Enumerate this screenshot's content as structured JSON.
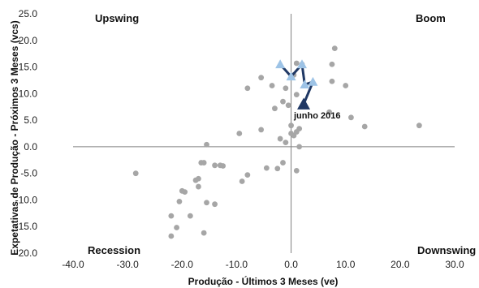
{
  "chart_data": {
    "type": "scatter",
    "xlabel": "Produção - Últimos 3 Meses (ve)",
    "ylabel": "Expetativas de Produção - Próximos 3 Meses (vcs)",
    "xlim": [
      -40,
      30
    ],
    "ylim": [
      -20,
      25
    ],
    "xticks": [
      -40,
      -30,
      -20,
      -10,
      0,
      10,
      20,
      30
    ],
    "yticks": [
      -20,
      -15,
      -10,
      -5,
      0,
      5,
      10,
      15,
      20,
      25
    ],
    "xtick_labels": [
      "-40.0",
      "-30.0",
      "-20.0",
      "-10.0",
      "0.0",
      "10.0",
      "20.0",
      "30.0"
    ],
    "ytick_labels": [
      "-20.0",
      "-15.0",
      "-10.0",
      "-5.0",
      "0.0",
      "5.0",
      "10.0",
      "15.0",
      "20.0",
      "25.0"
    ],
    "grid": false,
    "quadrant_labels": {
      "top_left": "Upswing",
      "top_right": "Boom",
      "bottom_left": "Recession",
      "bottom_right": "Downswing"
    },
    "annotation": "junho 2016",
    "colors": {
      "scatter": "#a6a6a6",
      "trail_line": "#1f3864",
      "trail_marker": "#9dc3e6",
      "latest_marker": "#1f3864",
      "axes": "#808080"
    },
    "series": [
      {
        "points": [
          [
            -28.5,
            -5.0
          ],
          [
            -22,
            -13
          ],
          [
            -22,
            -16.8
          ],
          [
            -21,
            -15.2
          ],
          [
            -20.5,
            -10.3
          ],
          [
            -20,
            -8.3
          ],
          [
            -19.5,
            -8.5
          ],
          [
            -18.5,
            -13
          ],
          [
            -17.5,
            -6.3
          ],
          [
            -17,
            -7.5
          ],
          [
            -17,
            -6
          ],
          [
            -16.5,
            -3
          ],
          [
            -16,
            -3
          ],
          [
            -16,
            -16.2
          ],
          [
            -15.5,
            -10.5
          ],
          [
            -15.5,
            0.4
          ],
          [
            -14,
            -10.8
          ],
          [
            -14,
            -3.5
          ],
          [
            -13,
            -3.5
          ],
          [
            -12.5,
            -3.6
          ],
          [
            -9.5,
            2.5
          ],
          [
            -9,
            -6.5
          ],
          [
            -8,
            -5.3
          ],
          [
            -8,
            11
          ],
          [
            -5.5,
            3.2
          ],
          [
            -5.5,
            13
          ],
          [
            -4.5,
            -4
          ],
          [
            -3.5,
            11.5
          ],
          [
            -3,
            7.2
          ],
          [
            -2.5,
            -4.1
          ],
          [
            -2,
            1.5
          ],
          [
            -1.5,
            8.5
          ],
          [
            -1.5,
            -3
          ],
          [
            -1,
            0.8
          ],
          [
            -1,
            11
          ],
          [
            -0.5,
            7.8
          ],
          [
            0,
            2.5
          ],
          [
            0,
            4
          ],
          [
            0.5,
            2.1
          ],
          [
            0.5,
            13.5
          ],
          [
            1,
            15.7
          ],
          [
            1,
            -4.5
          ],
          [
            1,
            9.8
          ],
          [
            1,
            2.8
          ],
          [
            1.5,
            3.4
          ],
          [
            1.5,
            0
          ],
          [
            2,
            15.5
          ],
          [
            7,
            6.5
          ],
          [
            7.5,
            12.3
          ],
          [
            7.5,
            15.5
          ],
          [
            8,
            18.5
          ],
          [
            10,
            11.5
          ],
          [
            11,
            5.5
          ],
          [
            13.5,
            3.8
          ],
          [
            23.5,
            4
          ]
        ]
      },
      {
        "points": [
          [
            -2.0,
            15.5
          ],
          [
            0.0,
            13.2
          ],
          [
            2.0,
            15.5
          ],
          [
            2.5,
            11.7
          ],
          [
            4.0,
            12.2
          ]
        ]
      },
      {
        "points": [
          [
            2.3,
            8.0
          ]
        ]
      }
    ]
  }
}
